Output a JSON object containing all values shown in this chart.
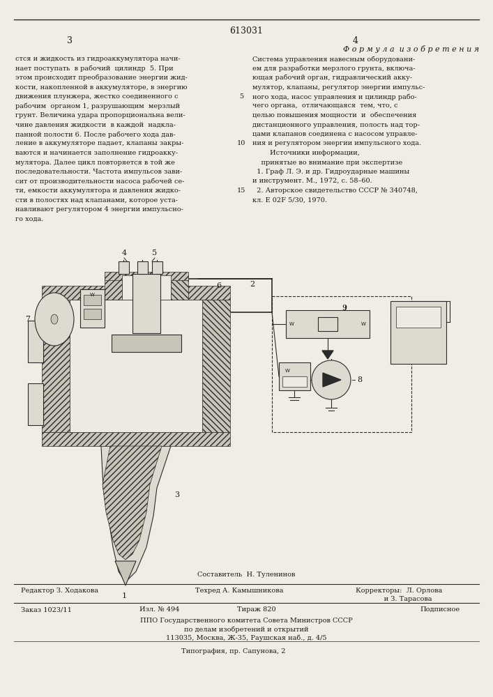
{
  "page_number": "613031",
  "col_left_number": "3",
  "col_right_number": "4",
  "background_color": "#f0ede4",
  "text_color": "#1a1a1a",
  "line_color": "#2a2a2a",
  "hatch_color": "#888880",
  "formula_title": "Ф о р м у л а  и з о б р е т е н и я",
  "left_text_lines": [
    "стся и жидкость из гидроаккумулятора начи-",
    "нает поступать  в рабочий  цилиндр  5. При",
    "этом происходит преобразование энергии жид-",
    "кости, накопленной в аккумуляторе, в энергию",
    "движения плунжера, жестко соединенного с",
    "рабочим  органом 1, разрушающим  мерзлый",
    "грунт. Величина удара пропорциональна вели-",
    "чине давления жидкости  в каждой  надкла-",
    "панной полости 6. После рабочего хода дав-",
    "ление в аккумуляторе падает, клапаны закры-",
    "ваются и начинается заполнение гидроакку-",
    "мулятора. Далее цикл повторяется в той же",
    "последовательности. Частота импульсов зави-",
    "сит от производительности насоса рабочей се-",
    "ти, емкости аккумулятора и давления жидко-",
    "сти в полостях над клапанами, которое уста-",
    "навливают регулятором 4 энергии импульсно-",
    "го хода."
  ],
  "right_text_lines": [
    "Система управления навесным оборудовани-",
    "ем для разработки мерзлого грунта, включа-",
    "ющая рабочий орган, гидравлический акку-",
    "мулятор, клапаны, регулятор энергии импульс-",
    "ного хода, насос управления и цилиндр рабо-",
    "чего органа,  отличающаяся  тем, что, с",
    "целью повышения мощности  и  обеспечения",
    "дистанционного управления, полость над тор-",
    "цами клапанов соединена с насосом управле-",
    "ния и регулятором энергии импульсного хода.",
    "        Источники информации,",
    "    принятые во внимание при экспертизе",
    "  1. Граф Л. Э. и др. Гидроударные машины",
    "и инструмент. М., 1972, с. 58–60.",
    "  2. Авторское свидетельство СССР № 340748,",
    "кл. Е 02F 5/30, 1970."
  ]
}
